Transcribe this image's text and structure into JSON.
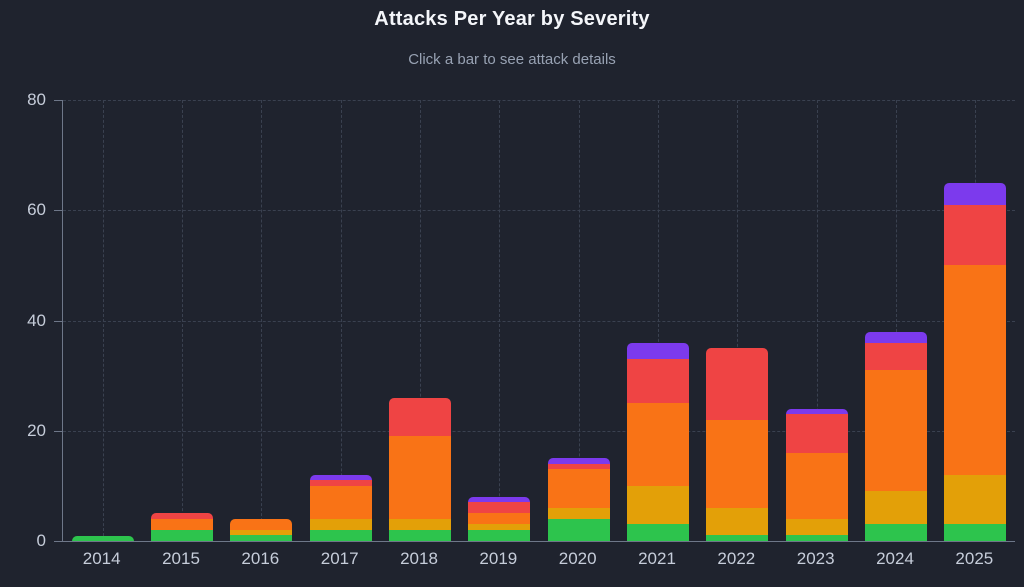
{
  "title": "Attacks Per Year by Severity",
  "subtitle": "Click a bar to see attack details",
  "colors": {
    "background": "#1f232e",
    "title": "#f4f6fa",
    "subtitle": "#98a2b3",
    "axis_line": "#6e7789",
    "grid_line": "#3a4150",
    "tick_label": "#c6cdda"
  },
  "chart_data": {
    "type": "bar",
    "stacked": true,
    "title": "Attacks Per Year by Severity",
    "xlabel": "",
    "ylabel": "",
    "categories": [
      "2014",
      "2015",
      "2016",
      "2017",
      "2018",
      "2019",
      "2020",
      "2021",
      "2022",
      "2023",
      "2024",
      "2025"
    ],
    "series": [
      {
        "name": "green",
        "color": "#2dc44d",
        "values": [
          1,
          2,
          1,
          2,
          2,
          2,
          4,
          3,
          1,
          1,
          3,
          3
        ]
      },
      {
        "name": "yellow",
        "color": "#e3a008",
        "values": [
          0,
          0,
          1,
          2,
          2,
          1,
          2,
          7,
          5,
          3,
          6,
          9
        ]
      },
      {
        "name": "orange",
        "color": "#f97316",
        "values": [
          0,
          2,
          2,
          6,
          15,
          2,
          7,
          15,
          16,
          12,
          22,
          38
        ]
      },
      {
        "name": "red",
        "color": "#ef4444",
        "values": [
          0,
          1,
          0,
          1,
          7,
          2,
          1,
          8,
          13,
          7,
          5,
          11
        ]
      },
      {
        "name": "purple",
        "color": "#7c3aed",
        "values": [
          0,
          0,
          0,
          1,
          0,
          1,
          1,
          3,
          0,
          1,
          2,
          4
        ]
      }
    ],
    "totals": [
      1,
      5,
      4,
      12,
      26,
      8,
      15,
      36,
      35,
      24,
      38,
      65
    ],
    "ylim": [
      0,
      80
    ],
    "yticks": [
      0,
      20,
      40,
      60,
      80
    ],
    "grid": "dashed",
    "legend": "none"
  }
}
